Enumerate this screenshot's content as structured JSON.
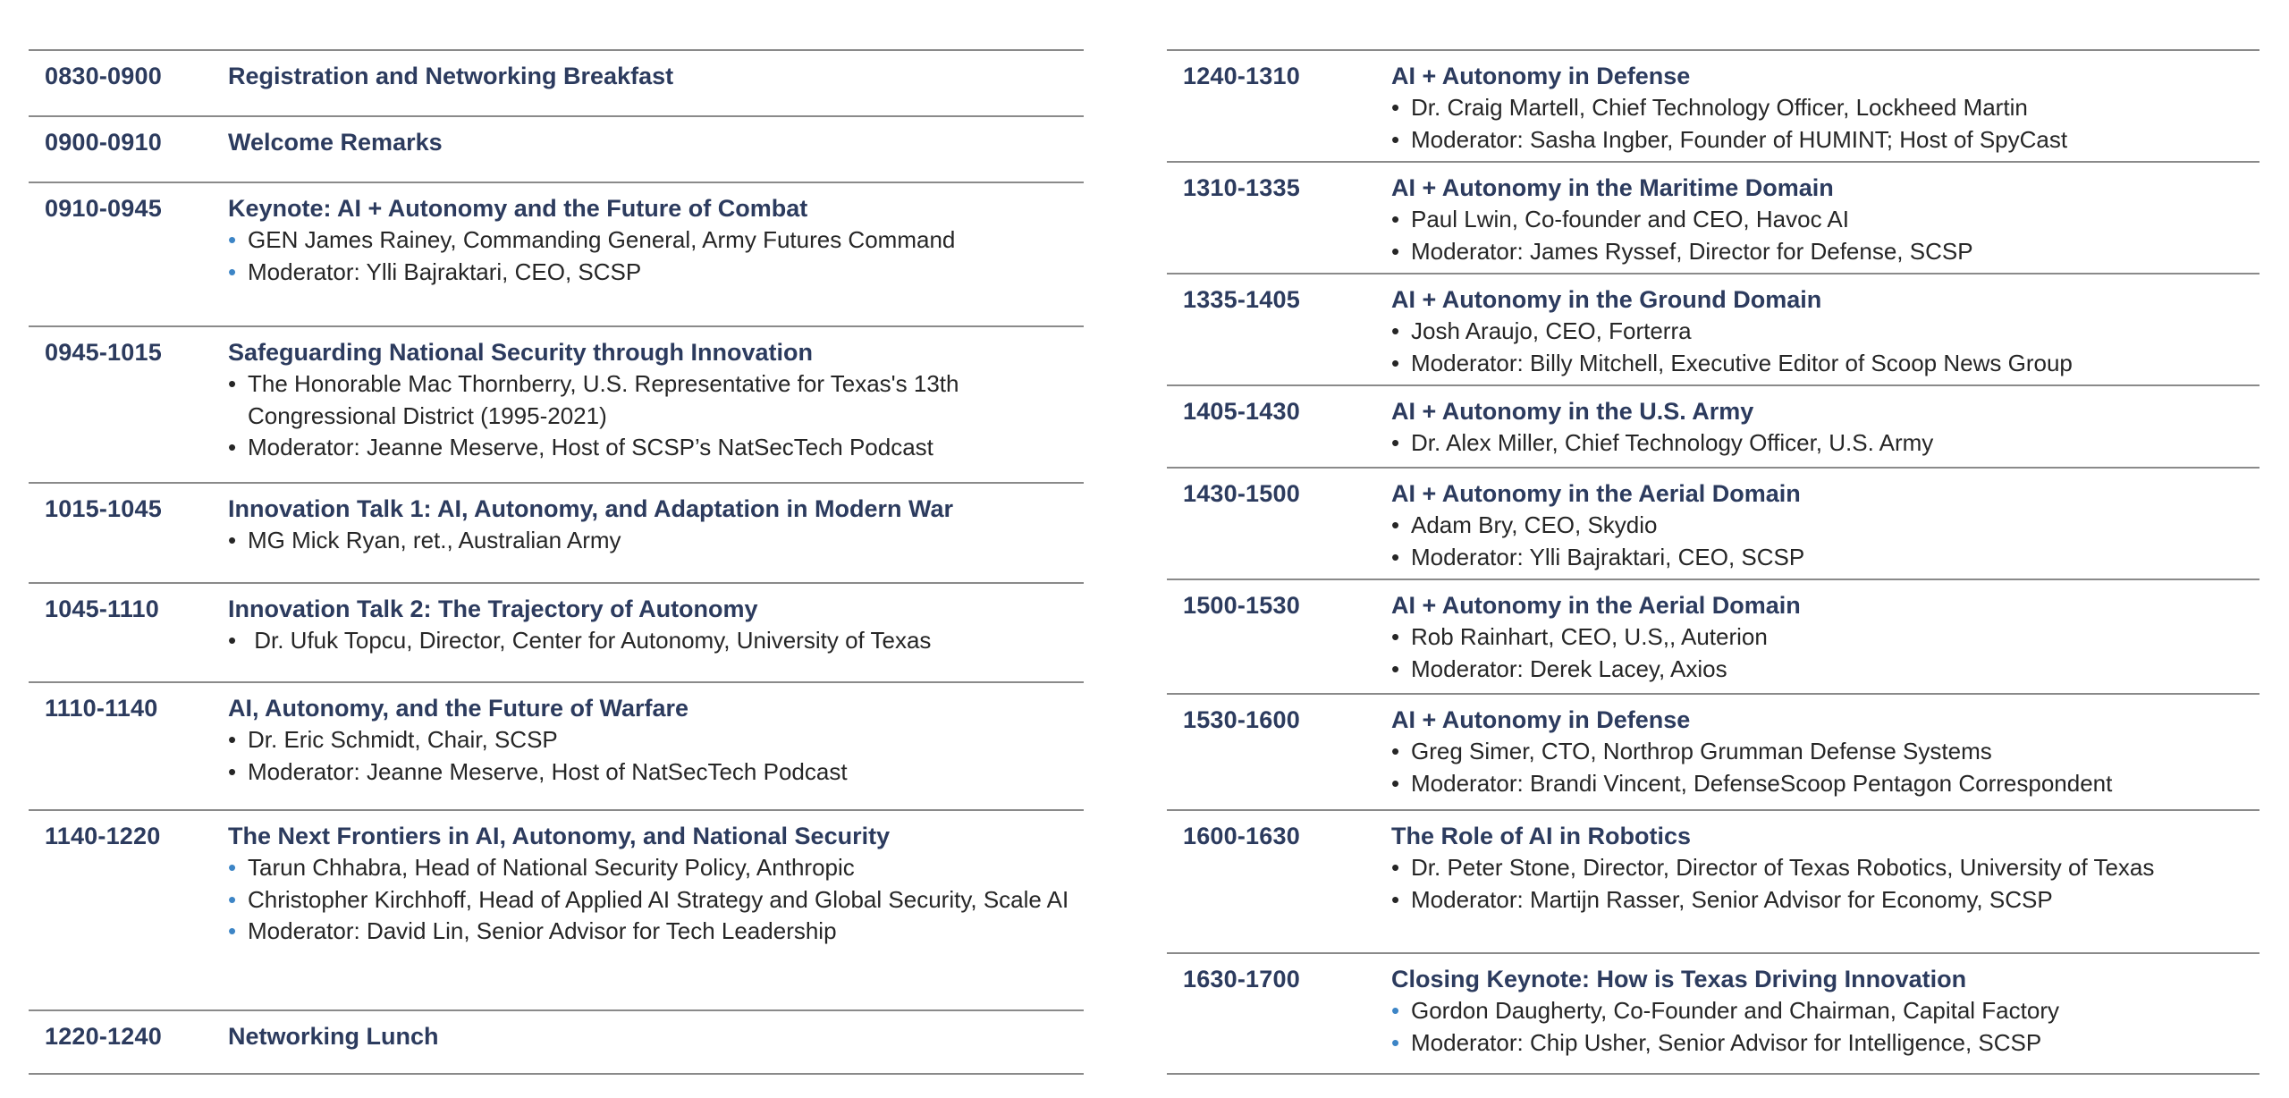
{
  "left_column": [
    {
      "time": "0830-0900",
      "title": "Registration and Networking Breakfast",
      "height": 74,
      "items": []
    },
    {
      "time": "0900-0910",
      "title": "Welcome Remarks",
      "height": 74,
      "items": []
    },
    {
      "time": "0910-0945",
      "title": "Keynote: AI + Autonomy and the Future of Combat",
      "height": 161,
      "bullet_style": "blue",
      "items": [
        "GEN James Rainey, Commanding General, Army Futures Command",
        "Moderator:  Ylli Bajraktari, CEO, SCSP"
      ]
    },
    {
      "time": "0945-1015",
      "title": "Safeguarding National Security through Innovation",
      "height": 175,
      "items": [
        "The Honorable Mac Thornberry, U.S. Representative for Texas's 13th Congressional District (1995-2021)",
        "Moderator: Jeanne Meserve, Host of SCSP’s NatSecTech Podcast"
      ]
    },
    {
      "time": "1015-1045",
      "title": "Innovation Talk 1:  AI, Autonomy, and  Adaptation in Modern War",
      "height": 112,
      "items": [
        "MG Mick Ryan, ret., Australian Army"
      ]
    },
    {
      "time": "1045-1110",
      "title": "Innovation Talk 2: The Trajectory of Autonomy",
      "height": 111,
      "items": [
        " Dr. Ufuk Topcu, Director, Center for Autonomy, University of Texas"
      ]
    },
    {
      "time": "1110-1140",
      "title": "AI, Autonomy, and the Future of Warfare",
      "height": 143,
      "items": [
        "Dr. Eric Schmidt, Chair, SCSP",
        "Moderator: Jeanne Meserve, Host of NatSecTech Podcast"
      ]
    },
    {
      "time": "1140-1220",
      "title": "The Next Frontiers in AI, Autonomy, and National Security",
      "height": 224,
      "bullet_style": "blue",
      "items": [
        "Tarun Chhabra, Head of National Security Policy, Anthropic",
        "Christopher Kirchhoff, Head of Applied AI Strategy and Global Security, Scale AI",
        "Moderator:  David Lin, Senior Advisor for Tech Leadership"
      ]
    },
    {
      "time": "1220-1240",
      "title": "Networking Lunch",
      "height": 73,
      "items": []
    }
  ],
  "right_column": [
    {
      "time": "1240-1310",
      "title": "AI + Autonomy in Defense",
      "height": 125,
      "items": [
        "Dr. Craig Martell, Chief Technology Officer, Lockheed Martin",
        "Moderator: Sasha Ingber, Founder of HUMINT; Host of SpyCast"
      ]
    },
    {
      "time": "1310-1335",
      "title": "AI + Autonomy in the Maritime Domain",
      "height": 125,
      "items": [
        "Paul Lwin, Co-founder and CEO, Havoc AI",
        "Moderator: James Ryssef, Director for Defense, SCSP"
      ]
    },
    {
      "time": "1335-1405",
      "title": "AI + Autonomy in the Ground Domain",
      "height": 125,
      "items": [
        "Josh Araujo, CEO, Forterra",
        "Moderator: Billy Mitchell, Executive Editor of Scoop News Group"
      ]
    },
    {
      "time": "1405-1430",
      "title": "AI + Autonomy in the U.S. Army",
      "height": 92,
      "items": [
        "Dr. Alex Miller, Chief Technology Officer, U.S. Army"
      ]
    },
    {
      "time": "1430-1500",
      "title": "AI + Autonomy in the Aerial Domain",
      "height": 125,
      "items": [
        "Adam Bry, CEO, Skydio",
        "Moderator:  Ylli Bajraktari, CEO, SCSP"
      ]
    },
    {
      "time": "1500-1530",
      "title": "AI + Autonomy in the Aerial Domain",
      "height": 128,
      "items": [
        "Rob Rainhart, CEO, U.S,, Auterion",
        "Moderator:  Derek Lacey, Axios"
      ]
    },
    {
      "time": "1530-1600",
      "title": "AI + Autonomy in Defense",
      "height": 130,
      "items": [
        "Greg Simer, CTO, Northrop Grumman Defense Systems",
        "Moderator:  Brandi Vincent, DefenseScoop Pentagon Correspondent"
      ]
    },
    {
      "time": "1600-1630",
      "title": "The Role of AI in Robotics",
      "height": 160,
      "items": [
        "Dr. Peter Stone, Director, Director of Texas Robotics, University of Texas",
        "Moderator: Martijn Rasser, Senior Advisor for Economy, SCSP"
      ]
    },
    {
      "time": "1630-1700",
      "title": "Closing Keynote: How is Texas Driving Innovation",
      "height": 137,
      "bullet_style": "blue",
      "items": [
        "Gordon Daugherty, Co-Founder and Chairman, Capital Factory",
        "Moderator:  Chip Usher, Senior Advisor for Intelligence, SCSP"
      ]
    }
  ]
}
